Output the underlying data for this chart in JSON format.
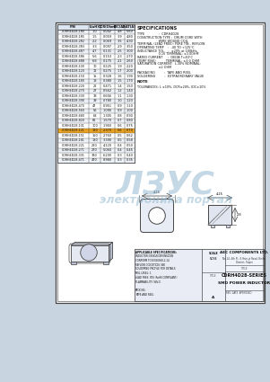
{
  "bg_color": "#c8d4e0",
  "page_bg": "#f5f7fa",
  "border_color": "#555555",
  "title_block_text": "CDRH4D28-SERIES\nSMD POWER INDUCTOR",
  "company": "AEC COMPONENTS LTD.",
  "company_sub": "No.14, 4th Fl., 6 Hsin-yi Road, Neihu District, Taipei",
  "part_number": "CDRH4D28",
  "spec_title": "SPECIFICATIONS",
  "table_headers": [
    "P/N",
    "L(uH)",
    "DCR(Ohm)",
    "IDC(A)",
    "ISAT(A)"
  ],
  "table_rows": [
    [
      "CDRH4D28-1R0",
      "1.0",
      "0.042",
      "4.8",
      "5.60"
    ],
    [
      "CDRH4D28-1R5",
      "1.5",
      "0.059",
      "3.9",
      "4.80"
    ],
    [
      "CDRH4D28-2R2",
      "2.2",
      "0.069",
      "3.5",
      "4.30"
    ],
    [
      "CDRH4D28-3R3",
      "3.3",
      "0.097",
      "2.9",
      "3.50"
    ],
    [
      "CDRH4D28-4R7",
      "4.7",
      "0.131",
      "2.5",
      "3.00"
    ],
    [
      "CDRH4D28-5R6",
      "5.6",
      "0.153",
      "2.3",
      "2.70"
    ],
    [
      "CDRH4D28-6R8",
      "6.8",
      "0.175",
      "2.1",
      "2.60"
    ],
    [
      "CDRH4D28-100",
      "10",
      "0.225",
      "1.9",
      "2.20"
    ],
    [
      "CDRH4D28-120",
      "12",
      "0.275",
      "1.7",
      "2.00"
    ],
    [
      "CDRH4D28-150",
      "15",
      "0.328",
      "1.6",
      "1.90"
    ],
    [
      "CDRH4D28-180",
      "18",
      "0.380",
      "1.5",
      "1.70"
    ],
    [
      "CDRH4D28-220",
      "22",
      "0.471",
      "1.4",
      "1.50"
    ],
    [
      "CDRH4D28-270",
      "27",
      "0.562",
      "1.2",
      "1.40"
    ],
    [
      "CDRH4D28-330",
      "33",
      "0.656",
      "1.1",
      "1.30"
    ],
    [
      "CDRH4D28-390",
      "39",
      "0.780",
      "1.0",
      "1.20"
    ],
    [
      "CDRH4D28-470",
      "47",
      "0.951",
      "0.9",
      "1.10"
    ],
    [
      "CDRH4D28-560",
      "56",
      "1.090",
      "0.9",
      "1.00"
    ],
    [
      "CDRH4D28-680",
      "68",
      "1.305",
      "0.8",
      "0.90"
    ],
    [
      "CDRH4D28-820",
      "82",
      "1.570",
      "0.7",
      "0.80"
    ],
    [
      "CDRH4D28-101",
      "100",
      "1.960",
      "0.6",
      "0.75"
    ],
    [
      "CDRH4D28-121",
      "120",
      "2.370",
      "0.6",
      "0.70"
    ],
    [
      "CDRH4D28-151",
      "150",
      "2.760",
      "0.5",
      "0.62"
    ],
    [
      "CDRH4D28-181",
      "180",
      "3.390",
      "0.5",
      "0.58"
    ],
    [
      "CDRH4D28-221",
      "220",
      "4.120",
      "0.4",
      "0.50"
    ],
    [
      "CDRH4D28-271",
      "270",
      "5.060",
      "0.4",
      "0.45"
    ],
    [
      "CDRH4D28-331",
      "330",
      "6.200",
      "0.3",
      "0.40"
    ],
    [
      "CDRH4D28-471",
      "470",
      "8.980",
      "0.3",
      "0.35"
    ]
  ],
  "highlight_row": 20,
  "highlight_color": "#e8a020",
  "watermark_lines": [
    "ЛЗУС",
    "электроника портал"
  ],
  "watermark_color": "#8ab4cc",
  "watermark_alpha": 0.5,
  "line_color": "#444444",
  "gray_area_color": "#b8c8d8"
}
